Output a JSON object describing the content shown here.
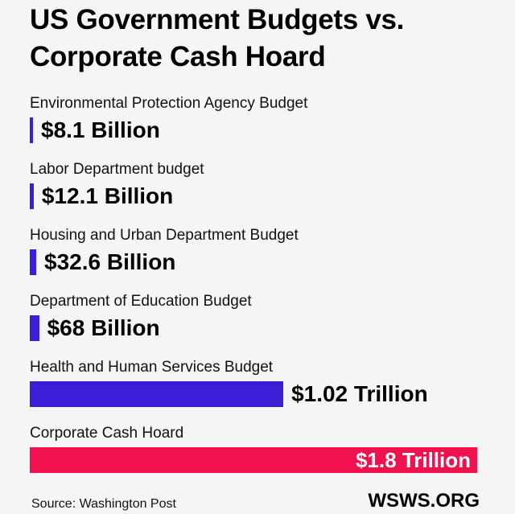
{
  "title_lines": [
    "US Government Budgets vs.",
    "Corporate Cash Hoard"
  ],
  "source": "Source: Washington Post",
  "brand": "WSWS.ORG",
  "colors": {
    "government": "#3a1fd6",
    "corporate": "#f0124f"
  },
  "chart_data": {
    "type": "bar",
    "orientation": "horizontal",
    "title": "US Government Budgets vs. Corporate Cash Hoard",
    "unit": "USD",
    "categories": [
      "Environmental Protection Agency Budget",
      "Labor Department budget",
      "Housing and Urban Department Budget",
      "Department of Education Budget",
      "Health and Human Services Budget",
      "Corporate Cash Hoard"
    ],
    "values_billion": [
      8.1,
      12.1,
      32.6,
      68,
      1020,
      1800
    ],
    "value_labels": [
      "$8.1 Billion",
      "$12.1 Billion",
      "$32.6 Billion",
      "$68 Billion",
      "$1.02 Trillion",
      "$1.8 Trillion"
    ],
    "bar_colors": [
      "#3a1fd6",
      "#3a1fd6",
      "#3a1fd6",
      "#3a1fd6",
      "#3a1fd6",
      "#f0124f"
    ],
    "grid": false,
    "legend": "none"
  }
}
